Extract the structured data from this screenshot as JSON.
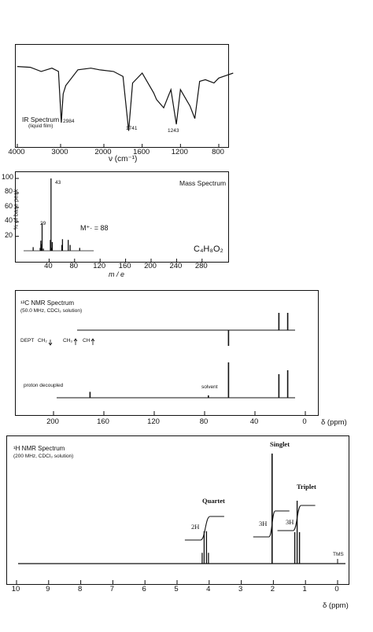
{
  "ir": {
    "title": "IR Spectrum",
    "subtitle": "(liquid film)",
    "xlabel": "ν (cm⁻¹)",
    "xticks": [
      "4000",
      "3000",
      "2000",
      "1600",
      "1200",
      "800"
    ],
    "peak_labels": [
      "2984",
      "1741",
      "1243"
    ]
  },
  "ms": {
    "title": "Mass Spectrum",
    "ylabel": "% of base peak",
    "yticks": [
      "100",
      "80",
      "60",
      "40",
      "20"
    ],
    "xticks": [
      "40",
      "80",
      "120",
      "160",
      "200",
      "240",
      "280"
    ],
    "xlabel": "m / e",
    "peak_labels": [
      "43",
      "29"
    ],
    "molecular_ion": "M⁺· = 88",
    "formula": "C₄H₈O₂"
  },
  "c13": {
    "title": "¹³C NMR Spectrum",
    "subtitle": "(50.0 MHz, CDCl₃ solution)",
    "dept_label": "DEPT",
    "dept_ch2": "CH₂",
    "dept_ch3": "CH₃",
    "dept_ch": "CH",
    "decoupled_label": "proton decoupled",
    "solvent_label": "solvent",
    "xticks": [
      "200",
      "160",
      "120",
      "80",
      "40",
      "0"
    ],
    "xlabel": "δ (ppm)"
  },
  "h1": {
    "title": "¹H NMR Spectrum",
    "subtitle": "(200 MHz, CDCl₃ solution)",
    "singlet": "Singlet",
    "triplet": "Triplet",
    "quartet": "Quartet",
    "int_2h": "2H",
    "int_3h_a": "3H",
    "int_3h_b": "3H",
    "tms": "TMS",
    "xticks": [
      "10",
      "9",
      "8",
      "7",
      "6",
      "5",
      "4",
      "3",
      "2",
      "1",
      "0"
    ],
    "xlabel": "δ (ppm)"
  },
  "chart_data": [
    {
      "type": "line",
      "title": "IR Spectrum",
      "xlabel": "ν (cm⁻¹)",
      "x_ticks": [
        4000,
        3000,
        2000,
        1600,
        1200,
        800
      ],
      "absorption_bands_cm-1": [
        2984,
        1741,
        1243
      ],
      "points": [
        [
          4000,
          88
        ],
        [
          3700,
          87
        ],
        [
          3450,
          82
        ],
        [
          3200,
          86
        ],
        [
          3050,
          82
        ],
        [
          2984,
          20
        ],
        [
          2940,
          55
        ],
        [
          2880,
          65
        ],
        [
          2600,
          84
        ],
        [
          2300,
          86
        ],
        [
          2100,
          84
        ],
        [
          1900,
          82
        ],
        [
          1800,
          76
        ],
        [
          1741,
          10
        ],
        [
          1700,
          68
        ],
        [
          1600,
          80
        ],
        [
          1480,
          56
        ],
        [
          1450,
          48
        ],
        [
          1375,
          38
        ],
        [
          1300,
          60
        ],
        [
          1243,
          18
        ],
        [
          1200,
          60
        ],
        [
          1100,
          40
        ],
        [
          1050,
          25
        ],
        [
          1000,
          70
        ],
        [
          940,
          72
        ],
        [
          850,
          68
        ],
        [
          800,
          74
        ],
        [
          700,
          78
        ],
        [
          650,
          80
        ]
      ]
    },
    {
      "type": "bar",
      "title": "Mass Spectrum",
      "xlabel": "m / e",
      "ylabel": "% of base peak",
      "ylim": [
        0,
        100
      ],
      "x_ticks": [
        40,
        80,
        120,
        160,
        200,
        240,
        280
      ],
      "peaks": [
        [
          15,
          5
        ],
        [
          26,
          4
        ],
        [
          27,
          14
        ],
        [
          28,
          9
        ],
        [
          29,
          38
        ],
        [
          31,
          3
        ],
        [
          42,
          15
        ],
        [
          43,
          100
        ],
        [
          44,
          4
        ],
        [
          45,
          12
        ],
        [
          60,
          8
        ],
        [
          61,
          16
        ],
        [
          70,
          15
        ],
        [
          73,
          8
        ],
        [
          88,
          4
        ]
      ],
      "molecular_ion": 88,
      "formula": "C₄H₈O₂"
    },
    {
      "type": "line",
      "title": "¹³C NMR Spectrum",
      "xlabel": "δ (ppm)",
      "x_ticks": [
        200,
        160,
        120,
        80,
        40,
        0
      ],
      "dept_peaks_ppm": [
        [
          61,
          -1
        ],
        [
          21,
          1
        ],
        [
          14,
          1
        ]
      ],
      "decoupled_peaks_ppm": [
        [
          171,
          0.15
        ],
        [
          77,
          0.06
        ],
        [
          61,
          0.9
        ],
        [
          21,
          0.6
        ],
        [
          14,
          0.7
        ]
      ]
    },
    {
      "type": "line",
      "title": "¹H NMR Spectrum",
      "xlabel": "δ (ppm)",
      "x_ticks": [
        10,
        9,
        8,
        7,
        6,
        5,
        4,
        3,
        2,
        1,
        0
      ],
      "signals": [
        {
          "label": "Quartet",
          "shift_ppm": 4.12,
          "integration": "2H"
        },
        {
          "label": "Singlet",
          "shift_ppm": 2.04,
          "integration": "3H"
        },
        {
          "label": "Triplet",
          "shift_ppm": 1.26,
          "integration": "3H"
        },
        {
          "label": "TMS",
          "shift_ppm": 0.0
        }
      ]
    }
  ]
}
